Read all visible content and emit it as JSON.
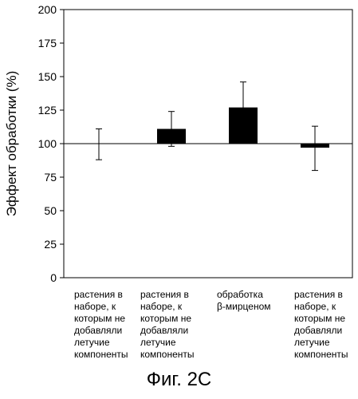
{
  "chart_data": {
    "type": "bar",
    "ylabel": "Эффект обработки (%)",
    "xlabel": "",
    "ylim": [
      0,
      200
    ],
    "yticks": [
      0,
      25,
      50,
      75,
      100,
      125,
      150,
      175,
      200
    ],
    "baseline": 100,
    "categories": [
      "растения в наборе, к которым не добавляли летучие компоненты",
      "растения в наборе, к которым не добавляли летучие компоненты",
      "обработка β-мирценом",
      "растения в наборе, к которым не добавляли летучие компоненты"
    ],
    "values": [
      100,
      111,
      127,
      97
    ],
    "error_low": [
      88,
      98,
      100,
      80
    ],
    "error_high": [
      111,
      124,
      146,
      113
    ],
    "bar_color": "#000000",
    "grid": false
  },
  "figure": {
    "caption": "Фиг. 2С",
    "category_labels": [
      "растения в\nнаборе, к\nкоторым не\nдобавляли\nлетучие\nкомпоненты",
      "растения в\nнаборе, к\nкоторым не\nдобавляли\nлетучие\nкомпоненты",
      "обработка\nβ-мирценом",
      "растения в\nнаборе, к\nкоторым не\nдобавляли\nлетучие\nкомпоненты"
    ]
  }
}
